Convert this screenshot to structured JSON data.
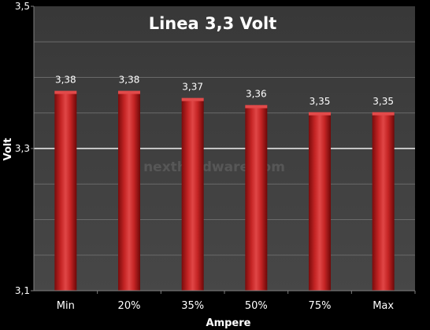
{
  "chart_data": {
    "type": "bar",
    "title": "Linea 3,3 Volt",
    "xlabel": "Ampere",
    "ylabel": "Volt",
    "categories": [
      "Min",
      "20%",
      "35%",
      "50%",
      "75%",
      "Max"
    ],
    "values": [
      3.38,
      3.38,
      3.37,
      3.36,
      3.35,
      3.35
    ],
    "value_labels": [
      "3,38",
      "3,38",
      "3,37",
      "3,36",
      "3,35",
      "3,35"
    ],
    "ylim": [
      3.1,
      3.5
    ],
    "yticks": [
      3.1,
      3.3,
      3.5
    ],
    "ytick_labels": [
      "3,1",
      "3,3",
      "3,5"
    ],
    "grid": true,
    "watermark": "nexthardware.com",
    "colors": {
      "background": "#000000",
      "plot_background": "#404040",
      "gridline_minor": "#6a6a6a",
      "gridline_major": "#f0f0f0",
      "bar": "#b81a1a",
      "bar_highlight": "#e24a4a",
      "bar_shadow": "#6e0808",
      "text": "#ffffff"
    }
  }
}
